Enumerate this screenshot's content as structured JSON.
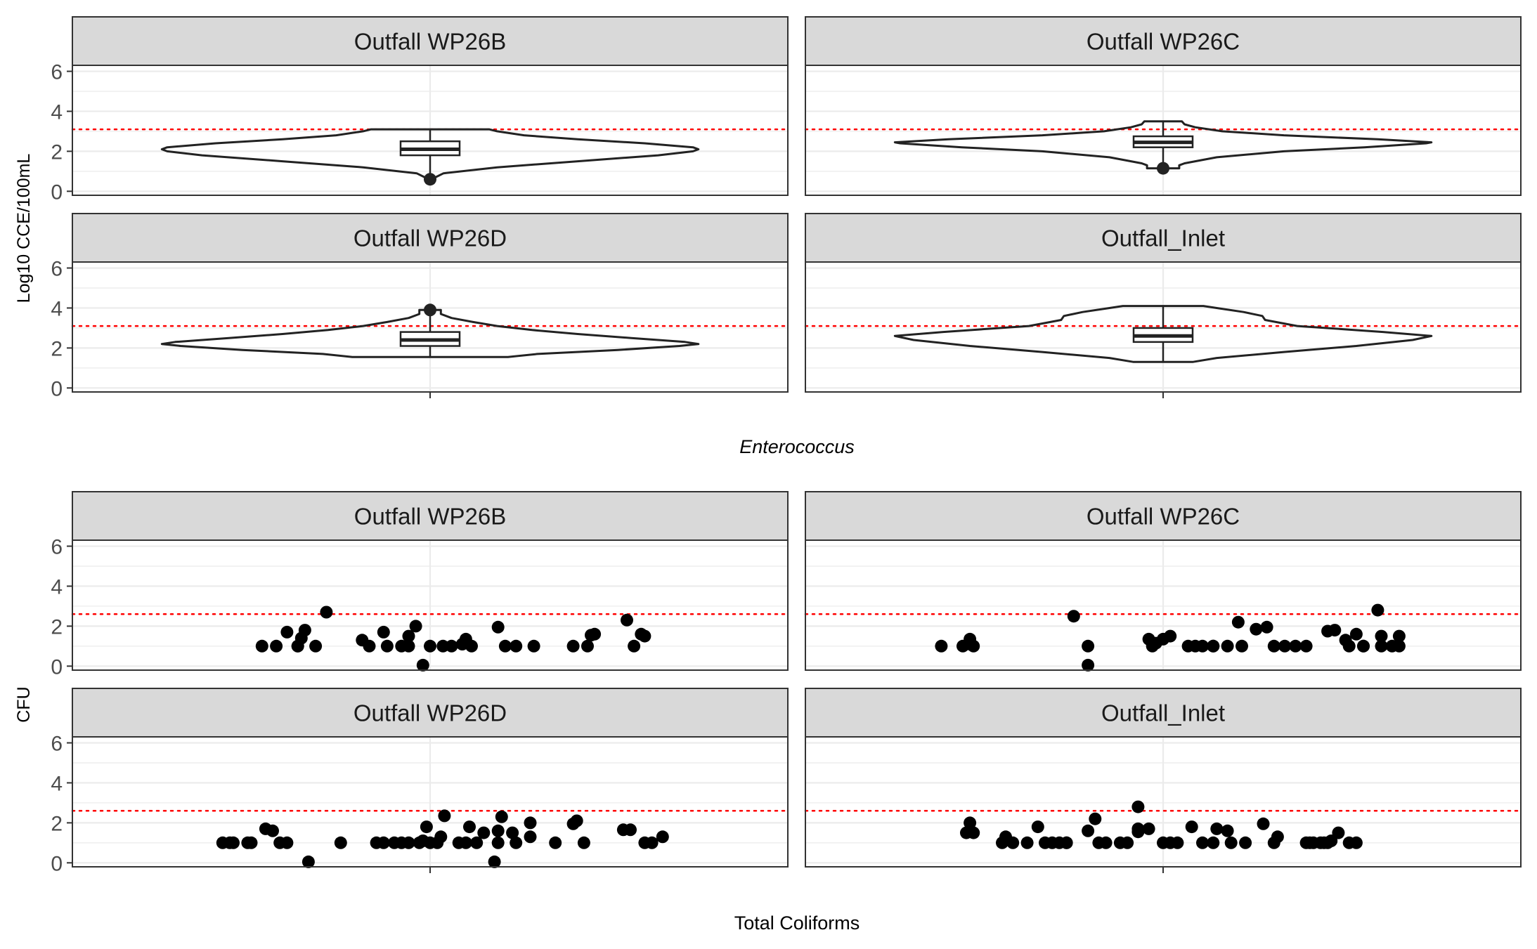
{
  "figure": {
    "top_caption": "Enterococcus",
    "bottom_caption": "Total Coliforms"
  },
  "chart_data": [
    {
      "type": "violin",
      "ylabel": "Log10 CCE/100mL",
      "xlabel": "",
      "caption": "Enterococcus",
      "ylim": [
        -0.2,
        6.3
      ],
      "yticks": [
        0,
        2,
        4,
        6
      ],
      "grid": true,
      "threshold_line": {
        "y": 3.1,
        "color": "#ff0000",
        "style": "dotted"
      },
      "panels": [
        {
          "title": "Outfall WP26B",
          "range": [
            0.6,
            3.1
          ],
          "box": {
            "q1": 1.8,
            "median": 2.1,
            "q3": 2.5,
            "whisker_low": 0.9,
            "whisker_high": 3.1
          },
          "outliers": [
            0.6
          ],
          "density": [
            [
              0.6,
              0.0
            ],
            [
              0.7,
              0.02
            ],
            [
              0.9,
              0.05
            ],
            [
              1.2,
              0.25
            ],
            [
              1.5,
              0.55
            ],
            [
              1.8,
              0.85
            ],
            [
              2.0,
              0.98
            ],
            [
              2.1,
              1.0
            ],
            [
              2.2,
              0.98
            ],
            [
              2.4,
              0.8
            ],
            [
              2.6,
              0.55
            ],
            [
              2.8,
              0.35
            ],
            [
              3.0,
              0.25
            ],
            [
              3.1,
              0.22
            ]
          ]
        },
        {
          "title": "Outfall WP26C",
          "range": [
            1.15,
            3.5
          ],
          "box": {
            "q1": 2.2,
            "median": 2.45,
            "q3": 2.75,
            "whisker_low": 1.2,
            "whisker_high": 3.5
          },
          "outliers": [
            1.15
          ],
          "density": [
            [
              1.15,
              0.06
            ],
            [
              1.3,
              0.06
            ],
            [
              1.4,
              0.08
            ],
            [
              1.7,
              0.2
            ],
            [
              2.0,
              0.45
            ],
            [
              2.2,
              0.75
            ],
            [
              2.4,
              0.98
            ],
            [
              2.45,
              1.0
            ],
            [
              2.6,
              0.8
            ],
            [
              2.8,
              0.45
            ],
            [
              3.0,
              0.22
            ],
            [
              3.2,
              0.12
            ],
            [
              3.35,
              0.08
            ],
            [
              3.5,
              0.07
            ]
          ]
        },
        {
          "title": "Outfall WP26D",
          "range": [
            1.55,
            3.9
          ],
          "box": {
            "q1": 2.1,
            "median": 2.4,
            "q3": 2.8,
            "whisker_low": 1.55,
            "whisker_high": 3.9
          },
          "outliers": [
            3.9
          ],
          "density": [
            [
              1.55,
              0.29
            ],
            [
              1.7,
              0.4
            ],
            [
              1.9,
              0.7
            ],
            [
              2.1,
              0.93
            ],
            [
              2.2,
              1.0
            ],
            [
              2.3,
              0.95
            ],
            [
              2.5,
              0.75
            ],
            [
              2.7,
              0.55
            ],
            [
              2.9,
              0.38
            ],
            [
              3.1,
              0.25
            ],
            [
              3.3,
              0.16
            ],
            [
              3.5,
              0.08
            ],
            [
              3.7,
              0.04
            ],
            [
              3.9,
              0.04
            ]
          ]
        },
        {
          "title": "Outfall_Inlet",
          "range": [
            1.3,
            4.1
          ],
          "box": {
            "q1": 2.3,
            "median": 2.6,
            "q3": 3.0,
            "whisker_low": 1.3,
            "whisker_high": 4.1
          },
          "outliers": [],
          "density": [
            [
              1.3,
              0.11
            ],
            [
              1.5,
              0.2
            ],
            [
              1.8,
              0.45
            ],
            [
              2.1,
              0.72
            ],
            [
              2.4,
              0.93
            ],
            [
              2.6,
              1.0
            ],
            [
              2.8,
              0.82
            ],
            [
              3.1,
              0.5
            ],
            [
              3.4,
              0.38
            ],
            [
              3.6,
              0.37
            ],
            [
              3.8,
              0.3
            ],
            [
              4.0,
              0.2
            ],
            [
              4.1,
              0.15
            ]
          ]
        }
      ]
    },
    {
      "type": "scatter",
      "ylabel": "CFU",
      "xlabel": "",
      "caption": "Total Coliforms",
      "ylim": [
        -0.2,
        6.3
      ],
      "yticks": [
        0,
        2,
        4,
        6
      ],
      "grid": true,
      "threshold_line": {
        "y": 2.6,
        "color": "#ff0000",
        "style": "dotted"
      },
      "x_range": [
        -0.5,
        0.5
      ],
      "panels": [
        {
          "title": "Outfall WP26B",
          "points": [
            [
              -0.235,
              1.0
            ],
            [
              -0.215,
              1.0
            ],
            [
              -0.2,
              1.7
            ],
            [
              -0.185,
              1.0
            ],
            [
              -0.18,
              1.4
            ],
            [
              -0.185,
              1.0
            ],
            [
              -0.175,
              1.8
            ],
            [
              -0.16,
              1.0
            ],
            [
              -0.145,
              2.7
            ],
            [
              -0.095,
              1.3
            ],
            [
              -0.085,
              1.0
            ],
            [
              -0.065,
              1.7
            ],
            [
              -0.06,
              1.0
            ],
            [
              -0.04,
              1.0
            ],
            [
              -0.03,
              1.5
            ],
            [
              -0.03,
              1.0
            ],
            [
              -0.02,
              2.0
            ],
            [
              -0.01,
              0.05
            ],
            [
              0.0,
              1.0
            ],
            [
              0.018,
              1.0
            ],
            [
              0.03,
              1.0
            ],
            [
              0.045,
              1.1
            ],
            [
              0.05,
              1.35
            ],
            [
              0.058,
              1.0
            ],
            [
              0.095,
              1.95
            ],
            [
              0.105,
              1.0
            ],
            [
              0.12,
              1.0
            ],
            [
              0.145,
              1.0
            ],
            [
              0.2,
              1.0
            ],
            [
              0.22,
              1.0
            ],
            [
              0.225,
              1.55
            ],
            [
              0.23,
              1.6
            ],
            [
              0.275,
              2.3
            ],
            [
              0.285,
              1.0
            ],
            [
              0.295,
              1.6
            ],
            [
              0.3,
              1.5
            ]
          ]
        },
        {
          "title": "Outfall WP26C",
          "points": [
            [
              -0.31,
              1.0
            ],
            [
              -0.28,
              1.0
            ],
            [
              -0.27,
              1.35
            ],
            [
              -0.27,
              1.1
            ],
            [
              -0.265,
              1.0
            ],
            [
              -0.125,
              2.5
            ],
            [
              -0.105,
              1.0
            ],
            [
              -0.105,
              0.05
            ],
            [
              -0.02,
              1.35
            ],
            [
              -0.015,
              1.0
            ],
            [
              -0.01,
              1.15
            ],
            [
              0.0,
              1.35
            ],
            [
              0.01,
              1.5
            ],
            [
              0.035,
              1.0
            ],
            [
              0.045,
              1.0
            ],
            [
              0.055,
              1.0
            ],
            [
              0.07,
              1.0
            ],
            [
              0.07,
              1.0
            ],
            [
              0.09,
              1.0
            ],
            [
              0.105,
              2.2
            ],
            [
              0.11,
              1.0
            ],
            [
              0.13,
              1.85
            ],
            [
              0.145,
              1.95
            ],
            [
              0.155,
              1.0
            ],
            [
              0.17,
              1.0
            ],
            [
              0.185,
              1.0
            ],
            [
              0.2,
              1.0
            ],
            [
              0.23,
              1.75
            ],
            [
              0.24,
              1.8
            ],
            [
              0.255,
              1.3
            ],
            [
              0.26,
              1.0
            ],
            [
              0.27,
              1.6
            ],
            [
              0.28,
              1.0
            ],
            [
              0.28,
              1.0
            ],
            [
              0.3,
              2.8
            ],
            [
              0.305,
              1.5
            ],
            [
              0.305,
              1.0
            ],
            [
              0.32,
              1.0
            ],
            [
              0.33,
              1.5
            ],
            [
              0.33,
              1.0
            ]
          ]
        },
        {
          "title": "Outfall WP26D",
          "points": [
            [
              -0.29,
              1.0
            ],
            [
              -0.28,
              1.0
            ],
            [
              -0.275,
              1.0
            ],
            [
              -0.255,
              1.0
            ],
            [
              -0.25,
              1.0
            ],
            [
              -0.23,
              1.7
            ],
            [
              -0.22,
              1.6
            ],
            [
              -0.21,
              1.0
            ],
            [
              -0.2,
              1.0
            ],
            [
              -0.17,
              0.05
            ],
            [
              -0.125,
              1.0
            ],
            [
              -0.075,
              1.0
            ],
            [
              -0.065,
              1.0
            ],
            [
              -0.05,
              1.0
            ],
            [
              -0.04,
              1.0
            ],
            [
              -0.03,
              1.0
            ],
            [
              -0.015,
              1.0
            ],
            [
              -0.01,
              1.1
            ],
            [
              -0.005,
              1.8
            ],
            [
              0.0,
              1.0
            ],
            [
              0.01,
              1.0
            ],
            [
              0.015,
              1.3
            ],
            [
              0.02,
              2.35
            ],
            [
              0.04,
              1.0
            ],
            [
              0.05,
              1.0
            ],
            [
              0.055,
              1.8
            ],
            [
              0.065,
              1.0
            ],
            [
              0.075,
              1.5
            ],
            [
              0.09,
              0.05
            ],
            [
              0.095,
              1.0
            ],
            [
              0.095,
              1.6
            ],
            [
              0.1,
              2.3
            ],
            [
              0.115,
              1.5
            ],
            [
              0.12,
              1.0
            ],
            [
              0.14,
              2.0
            ],
            [
              0.14,
              1.3
            ],
            [
              0.175,
              1.0
            ],
            [
              0.2,
              1.95
            ],
            [
              0.205,
              2.1
            ],
            [
              0.215,
              1.0
            ],
            [
              0.27,
              1.65
            ],
            [
              0.28,
              1.65
            ],
            [
              0.3,
              1.0
            ],
            [
              0.31,
              1.0
            ],
            [
              0.325,
              1.3
            ]
          ]
        },
        {
          "title": "Outfall_Inlet",
          "points": [
            [
              -0.275,
              1.5
            ],
            [
              -0.27,
              2.0
            ],
            [
              -0.265,
              1.5
            ],
            [
              -0.225,
              1.0
            ],
            [
              -0.22,
              1.3
            ],
            [
              -0.21,
              1.0
            ],
            [
              -0.19,
              1.0
            ],
            [
              -0.175,
              1.8
            ],
            [
              -0.165,
              1.0
            ],
            [
              -0.155,
              1.0
            ],
            [
              -0.145,
              1.0
            ],
            [
              -0.135,
              1.0
            ],
            [
              -0.135,
              1.0
            ],
            [
              -0.105,
              1.6
            ],
            [
              -0.095,
              2.2
            ],
            [
              -0.09,
              1.0
            ],
            [
              -0.08,
              1.0
            ],
            [
              -0.06,
              1.0
            ],
            [
              -0.05,
              1.0
            ],
            [
              -0.035,
              2.8
            ],
            [
              -0.035,
              1.7
            ],
            [
              -0.035,
              1.55
            ],
            [
              -0.02,
              1.7
            ],
            [
              0.0,
              1.0
            ],
            [
              0.01,
              1.0
            ],
            [
              0.02,
              1.0
            ],
            [
              0.04,
              1.8
            ],
            [
              0.055,
              1.0
            ],
            [
              0.07,
              1.0
            ],
            [
              0.075,
              1.7
            ],
            [
              0.09,
              1.6
            ],
            [
              0.095,
              1.0
            ],
            [
              0.115,
              1.0
            ],
            [
              0.14,
              1.95
            ],
            [
              0.155,
              1.0
            ],
            [
              0.16,
              1.3
            ],
            [
              0.2,
              1.0
            ],
            [
              0.205,
              1.0
            ],
            [
              0.21,
              1.0
            ],
            [
              0.22,
              1.0
            ],
            [
              0.225,
              1.0
            ],
            [
              0.23,
              1.0
            ],
            [
              0.235,
              1.1
            ],
            [
              0.245,
              1.5
            ],
            [
              0.26,
              1.0
            ],
            [
              0.27,
              1.0
            ]
          ]
        }
      ]
    }
  ]
}
